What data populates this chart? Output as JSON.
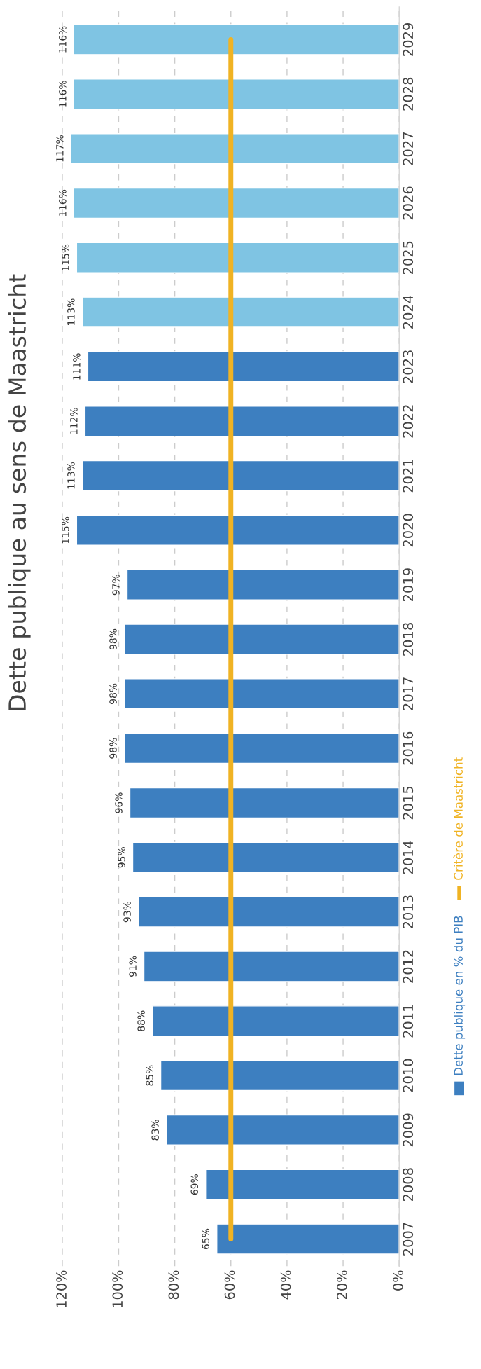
{
  "chart_data": {
    "type": "bar",
    "orientation": "horizontal",
    "title": "Dette publique au sens de Maastricht",
    "categories": [
      "2029",
      "2028",
      "2027",
      "2026",
      "2025",
      "2024",
      "2023",
      "2022",
      "2021",
      "2020",
      "2019",
      "2018",
      "2017",
      "2016",
      "2015",
      "2014",
      "2013",
      "2012",
      "2011",
      "2010",
      "2009",
      "2008",
      "2007"
    ],
    "series": [
      {
        "name": "Dette publique en % du PIB",
        "color": "#3d7fc0",
        "colors": [
          "#7fc4e3",
          "#7fc4e3",
          "#7fc4e3",
          "#7fc4e3",
          "#7fc4e3",
          "#7fc4e3",
          "#3d7fc0",
          "#3d7fc0",
          "#3d7fc0",
          "#3d7fc0",
          "#3d7fc0",
          "#3d7fc0",
          "#3d7fc0",
          "#3d7fc0",
          "#3d7fc0",
          "#3d7fc0",
          "#3d7fc0",
          "#3d7fc0",
          "#3d7fc0",
          "#3d7fc0",
          "#3d7fc0",
          "#3d7fc0",
          "#3d7fc0"
        ],
        "values": [
          116,
          116,
          117,
          116,
          115,
          113,
          111,
          112,
          113,
          115,
          97,
          98,
          98,
          98,
          96,
          95,
          93,
          91,
          88,
          85,
          83,
          69,
          65
        ],
        "value_labels": [
          "116%",
          "116%",
          "117%",
          "116%",
          "115%",
          "113%",
          "111%",
          "112%",
          "113%",
          "115%",
          "97%",
          "98%",
          "98%",
          "98%",
          "96%",
          "95%",
          "93%",
          "91%",
          "88%",
          "85%",
          "83%",
          "69%",
          "65%"
        ]
      },
      {
        "name": "Critère de Maastricht",
        "type": "line",
        "color": "#f0b323",
        "values": [
          60,
          60,
          60,
          60,
          60,
          60,
          60,
          60,
          60,
          60,
          60,
          60,
          60,
          60,
          60,
          60,
          60,
          60,
          60,
          60,
          60,
          60,
          60
        ]
      }
    ],
    "xlim": [
      120,
      0
    ],
    "xticks": [
      {
        "value": 120,
        "label": "120%"
      },
      {
        "value": 100,
        "label": "100%"
      },
      {
        "value": 80,
        "label": "80%"
      },
      {
        "value": 60,
        "label": "60%"
      },
      {
        "value": 40,
        "label": "40%"
      },
      {
        "value": 20,
        "label": "20%"
      },
      {
        "value": 0,
        "label": "0%"
      }
    ],
    "grid": "x",
    "legend": "right"
  }
}
